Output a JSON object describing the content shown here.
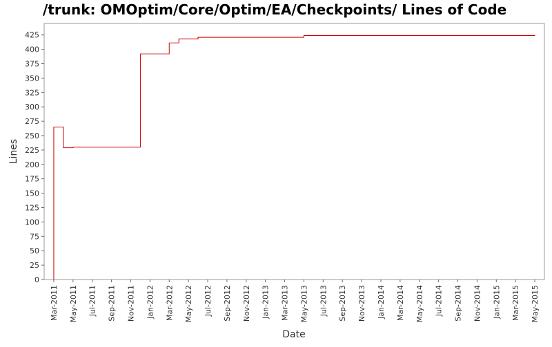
{
  "chart_data": {
    "type": "step",
    "title": "/trunk: OMOptim/Core/Optim/EA/Checkpoints/ Lines of Code",
    "x_label": "Date",
    "y_label": "Lines",
    "x": [
      "2011-03",
      "2011-03",
      "2011-04",
      "2011-05",
      "2011-12",
      "2012-03",
      "2012-04",
      "2012-06",
      "2013-05",
      "2015-05"
    ],
    "series": [
      {
        "name": "Lines",
        "color": "#cc0000",
        "values": [
          0,
          265,
          229,
          230,
          392,
          411,
          418,
          421,
          424,
          425
        ]
      }
    ],
    "xlim": [
      "2011-02",
      "2015-06"
    ],
    "xticks": [
      {
        "value": "2011-03",
        "label": "Mar-2011"
      },
      {
        "value": "2011-05",
        "label": "May-2011"
      },
      {
        "value": "2011-07",
        "label": "Jul-2011"
      },
      {
        "value": "2011-09",
        "label": "Sep-2011"
      },
      {
        "value": "2011-11",
        "label": "Nov-2011"
      },
      {
        "value": "2012-01",
        "label": "Jan-2012"
      },
      {
        "value": "2012-03",
        "label": "Mar-2012"
      },
      {
        "value": "2012-05",
        "label": "May-2012"
      },
      {
        "value": "2012-07",
        "label": "Jul-2012"
      },
      {
        "value": "2012-09",
        "label": "Sep-2012"
      },
      {
        "value": "2012-11",
        "label": "Nov-2012"
      },
      {
        "value": "2013-01",
        "label": "Jan-2013"
      },
      {
        "value": "2013-03",
        "label": "Mar-2013"
      },
      {
        "value": "2013-05",
        "label": "May-2013"
      },
      {
        "value": "2013-07",
        "label": "Jul-2013"
      },
      {
        "value": "2013-09",
        "label": "Sep-2013"
      },
      {
        "value": "2013-11",
        "label": "Nov-2013"
      },
      {
        "value": "2014-01",
        "label": "Jan-2014"
      },
      {
        "value": "2014-03",
        "label": "Mar-2014"
      },
      {
        "value": "2014-05",
        "label": "May-2014"
      },
      {
        "value": "2014-07",
        "label": "Jul-2014"
      },
      {
        "value": "2014-09",
        "label": "Sep-2014"
      },
      {
        "value": "2014-11",
        "label": "Nov-2014"
      },
      {
        "value": "2015-01",
        "label": "Jan-2015"
      },
      {
        "value": "2015-03",
        "label": "Mar-2015"
      },
      {
        "value": "2015-05",
        "label": "May-2015"
      }
    ],
    "ylim": [
      0,
      445
    ],
    "yticks": [
      0,
      25,
      50,
      75,
      100,
      125,
      150,
      175,
      200,
      225,
      250,
      275,
      300,
      325,
      350,
      375,
      400,
      425
    ],
    "grid": false
  }
}
